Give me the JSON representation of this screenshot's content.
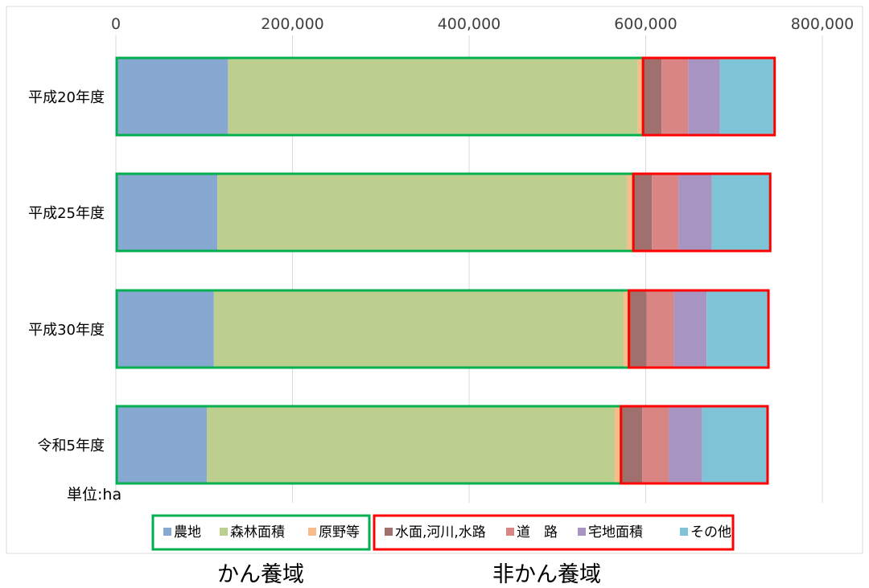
{
  "chart_data": {
    "type": "bar",
    "orientation": "horizontal",
    "stacked": true,
    "categories": [
      "平成20年度",
      "平成25年度",
      "平成30年度",
      "令和5年度"
    ],
    "series": [
      {
        "name": "農地",
        "color": "#86a8d1",
        "group": "かん養域",
        "values": [
          127000,
          115000,
          111000,
          103000
        ]
      },
      {
        "name": "森林面積",
        "color": "#bdcf8f",
        "group": "かん養域",
        "values": [
          464000,
          464000,
          464000,
          462000
        ]
      },
      {
        "name": "原野等",
        "color": "#f9bb8a",
        "group": "かん養域",
        "values": [
          6000,
          7000,
          6000,
          7000
        ]
      },
      {
        "name": "水面,河川,水路",
        "color": "#a0706e",
        "group": "非かん養域",
        "values": [
          21000,
          21000,
          20000,
          24000
        ]
      },
      {
        "name": "道　路",
        "color": "#d98583",
        "group": "非かん養域",
        "values": [
          30000,
          30000,
          31000,
          30000
        ]
      },
      {
        "name": "宅地面積",
        "color": "#a794c1",
        "group": "非かん養域",
        "values": [
          36000,
          38000,
          37000,
          38000
        ]
      },
      {
        "name": "その他",
        "color": "#7ec4d6",
        "group": "非かん養域",
        "values": [
          62000,
          66000,
          70000,
          74000
        ]
      }
    ],
    "xlim": [
      0,
      800000
    ],
    "x_ticks": [
      "0",
      "200,000",
      "400,000",
      "600,000",
      "800,000"
    ],
    "grid": true,
    "legend_position": "bottom",
    "unit_note": "単位:ha",
    "group_labels": [
      "かん養域",
      "非かん養域"
    ],
    "colors": {
      "group_box_green": "#00b050",
      "group_box_red": "#ff0000",
      "grid": "#d9d9d9"
    }
  }
}
